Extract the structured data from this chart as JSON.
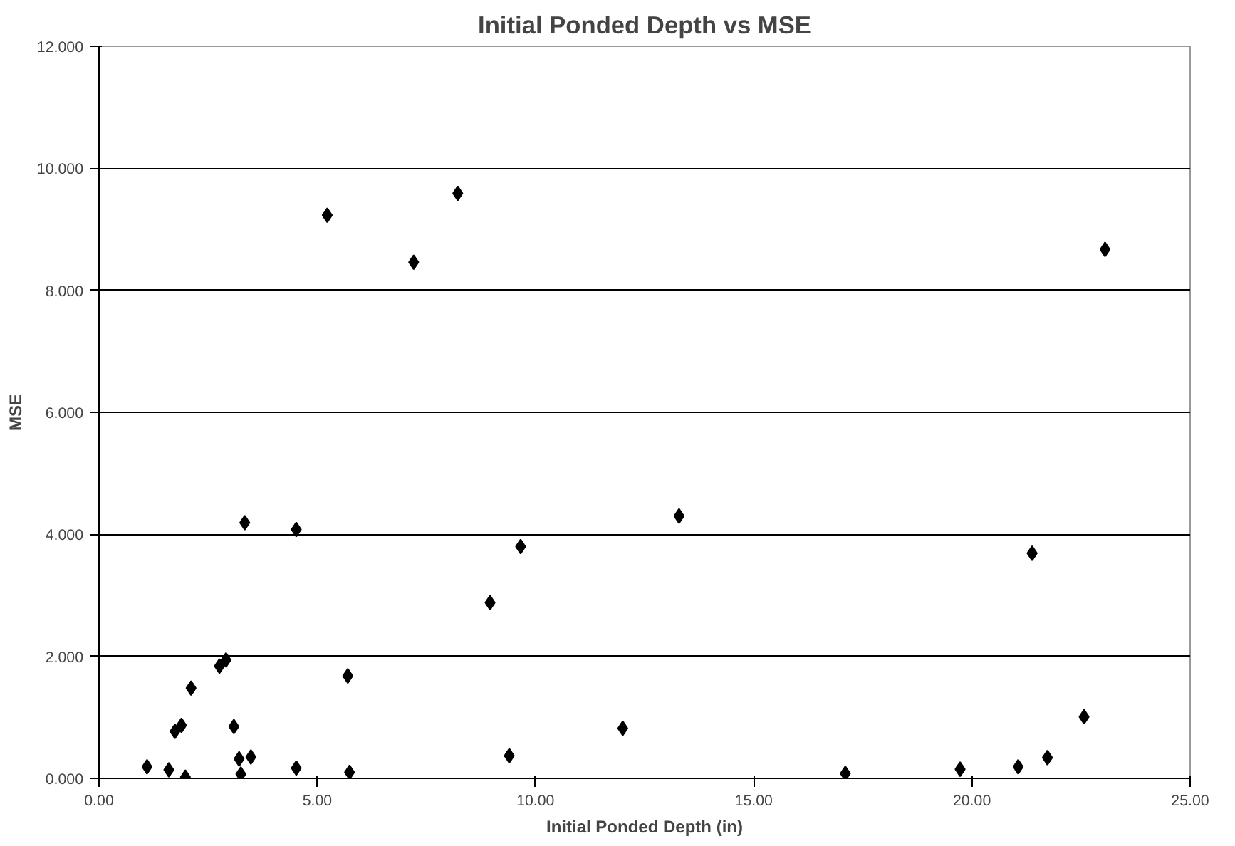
{
  "chart_data": {
    "type": "scatter",
    "title": "Initial Ponded Depth vs MSE",
    "xlabel": "Initial Ponded Depth (in)",
    "ylabel": "MSE",
    "x": [
      1.1,
      1.6,
      1.98,
      1.74,
      1.89,
      2.11,
      2.76,
      2.91,
      3.09,
      3.21,
      3.25,
      3.48,
      3.34,
      4.52,
      4.52,
      5.7,
      5.74,
      8.96,
      9.4,
      5.23,
      7.21,
      8.22,
      9.66,
      13.29,
      12.0,
      17.1,
      19.73,
      21.06,
      21.38,
      21.73,
      22.57,
      23.05
    ],
    "series": [
      {
        "color": "#000000",
        "values": [
          0.19,
          0.14,
          0.02,
          0.77,
          0.87,
          1.48,
          1.84,
          1.94,
          0.85,
          0.32,
          0.07,
          0.35,
          4.19,
          4.08,
          0.17,
          1.68,
          0.1,
          2.88,
          0.37,
          9.23,
          8.46,
          9.59,
          3.8,
          4.3,
          0.82,
          0.08,
          0.15,
          0.19,
          3.69,
          0.34,
          1.01,
          8.67
        ]
      }
    ],
    "marker": "diamond",
    "grid": "y",
    "xlim": [
      0,
      25
    ],
    "xticks": [
      {
        "value": 0,
        "label": "0.00"
      },
      {
        "value": 5,
        "label": "5.00"
      },
      {
        "value": 10,
        "label": "10.00"
      },
      {
        "value": 15,
        "label": "15.00"
      },
      {
        "value": 20,
        "label": "20.00"
      },
      {
        "value": 25,
        "label": "25.00"
      }
    ],
    "ylim": [
      0,
      12
    ],
    "yticks": [
      {
        "value": 0,
        "label": "0.000"
      },
      {
        "value": 2,
        "label": "2.000"
      },
      {
        "value": 4,
        "label": "4.000"
      },
      {
        "value": 6,
        "label": "6.000"
      },
      {
        "value": 8,
        "label": "8.000"
      },
      {
        "value": 10,
        "label": "10.000"
      },
      {
        "value": 12,
        "label": "12.000"
      }
    ]
  }
}
